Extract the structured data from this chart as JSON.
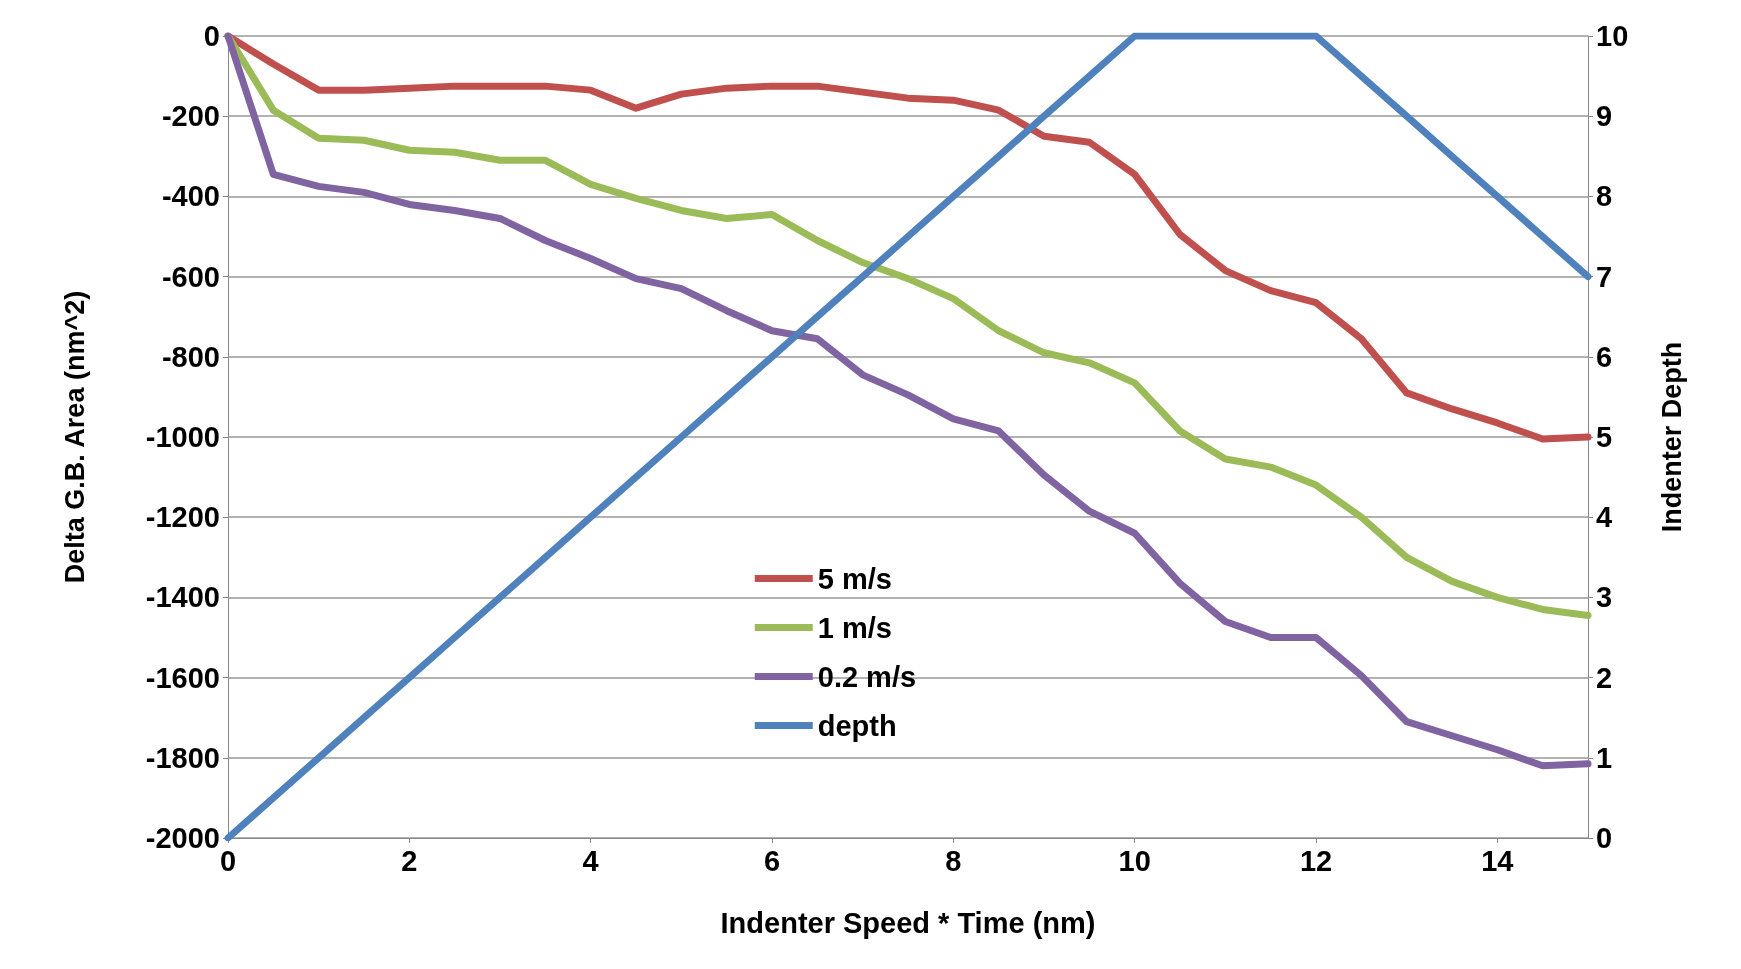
{
  "chart_data": {
    "type": "line",
    "xlabel": "Indenter Speed * Time (nm)",
    "ylabel": "Delta G.B. Area (nm^2)",
    "y2label": "Indenter Depth",
    "x": [
      0,
      0.5,
      1,
      1.5,
      2,
      2.5,
      3,
      3.5,
      4,
      4.5,
      5,
      5.5,
      6,
      6.5,
      7,
      7.5,
      8,
      8.5,
      9,
      9.5,
      10,
      10.5,
      11,
      11.5,
      12,
      12.5,
      13,
      13.5,
      14,
      14.5,
      15
    ],
    "series": [
      {
        "name": "5 m/s",
        "color": "#c0504d",
        "values": [
          0,
          -70,
          -135,
          -135,
          -130,
          -125,
          -125,
          -125,
          -135,
          -180,
          -145,
          -130,
          -125,
          -125,
          -140,
          -155,
          -160,
          -185,
          -250,
          -265,
          -345,
          -495,
          -585,
          -635,
          -665,
          -755,
          -890,
          -930,
          -965,
          -1005,
          -1000
        ]
      },
      {
        "name": "1 m/s",
        "color": "#9bbb59",
        "values": [
          0,
          -185,
          -255,
          -260,
          -285,
          -290,
          -310,
          -310,
          -370,
          -405,
          -435,
          -455,
          -445,
          -510,
          -565,
          -605,
          -655,
          -735,
          -790,
          -815,
          -865,
          -985,
          -1055,
          -1075,
          -1120,
          -1200,
          -1300,
          -1360,
          -1400,
          -1430,
          -1445
        ]
      },
      {
        "name": "0.2 m/s",
        "color": "#8064a2",
        "values": [
          0,
          -345,
          -375,
          -390,
          -420,
          -435,
          -455,
          -510,
          -555,
          -605,
          -630,
          -685,
          -735,
          -755,
          -845,
          -895,
          -955,
          -985,
          -1095,
          -1185,
          -1240,
          -1365,
          -1460,
          -1500,
          -1500,
          -1595,
          -1710,
          -1745,
          -1780,
          -1820,
          -1815
        ]
      },
      {
        "name": "depth",
        "color": "#4f81bd",
        "axis": "y2",
        "values": [
          0,
          0.5,
          1,
          1.5,
          2,
          2.5,
          3,
          3.5,
          4,
          4.5,
          5,
          5.5,
          6,
          6.5,
          7,
          7.5,
          8,
          8.5,
          9,
          9.5,
          10,
          10,
          10,
          10,
          10,
          9.5,
          9,
          8.5,
          8,
          7.5,
          7
        ]
      }
    ],
    "xlim": [
      0,
      15
    ],
    "xticks": [
      0,
      2,
      4,
      6,
      8,
      10,
      12,
      14
    ],
    "ylim": [
      -2000,
      0
    ],
    "yticks": [
      -2000,
      -1800,
      -1600,
      -1400,
      -1200,
      -1000,
      -800,
      -600,
      -400,
      -200,
      0
    ],
    "y2lim": [
      0,
      10
    ],
    "y2ticks": [
      0,
      1,
      2,
      3,
      4,
      5,
      6,
      7,
      8,
      9,
      10
    ],
    "grid": "y",
    "legend": "center",
    "marker": "none",
    "line_style": "solid"
  }
}
